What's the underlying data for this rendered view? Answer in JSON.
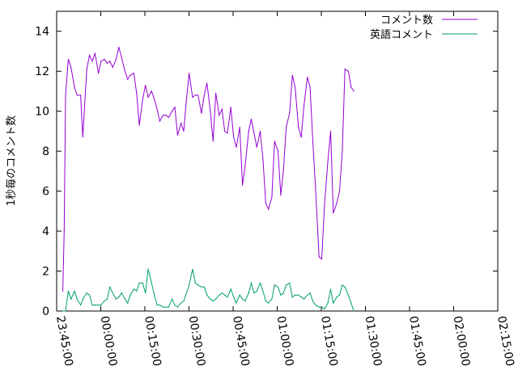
{
  "chart_data": {
    "type": "line",
    "title": "",
    "xlabel": "",
    "ylabel": "1秒毎のコメント数",
    "xlim": [
      "23:45:00",
      "02:15:00"
    ],
    "ylim": [
      0,
      15
    ],
    "xticks": [
      "23:45:00",
      "00:00:00",
      "00:15:00",
      "00:30:00",
      "00:45:00",
      "01:00:00",
      "01:15:00",
      "01:30:00",
      "01:45:00",
      "02:00:00",
      "02:15:00"
    ],
    "yticks": [
      "0",
      "2",
      "4",
      "6",
      "8",
      "10",
      "12",
      "14"
    ],
    "grid": false,
    "legend_position": "top-right",
    "series": [
      {
        "name": "コメント数",
        "color": "#9400d3",
        "points": [
          [
            "23:47:05",
            1.0
          ],
          [
            "23:47:33",
            4.0
          ],
          [
            "23:48:02",
            10.8
          ],
          [
            "23:48:58",
            12.6
          ],
          [
            "23:49:53",
            12.2
          ],
          [
            "23:51:03",
            11.2
          ],
          [
            "23:51:58",
            10.8
          ],
          [
            "23:53:08",
            10.8
          ],
          [
            "23:53:53",
            8.7
          ],
          [
            "23:55:15",
            12.1
          ],
          [
            "23:56:11",
            12.8
          ],
          [
            "23:57:06",
            12.5
          ],
          [
            "23:58:02",
            12.9
          ],
          [
            "23:59:12",
            11.9
          ],
          [
            "00:00:05",
            12.5
          ],
          [
            "00:01:15",
            12.6
          ],
          [
            "00:02:11",
            12.4
          ],
          [
            "00:03:07",
            12.5
          ],
          [
            "00:04:03",
            12.2
          ],
          [
            "00:05:12",
            12.6
          ],
          [
            "00:06:08",
            13.2
          ],
          [
            "00:07:04",
            12.7
          ],
          [
            "00:08:14",
            12.0
          ],
          [
            "00:09:09",
            11.6
          ],
          [
            "00:10:05",
            11.8
          ],
          [
            "00:11:15",
            11.9
          ],
          [
            "00:12:11",
            10.9
          ],
          [
            "00:13:06",
            9.3
          ],
          [
            "00:14:16",
            10.6
          ],
          [
            "00:15:12",
            11.3
          ],
          [
            "00:16:07",
            10.7
          ],
          [
            "00:17:17",
            11.0
          ],
          [
            "00:18:13",
            10.6
          ],
          [
            "00:19:09",
            10.1
          ],
          [
            "00:20:04",
            9.5
          ],
          [
            "00:21:14",
            9.8
          ],
          [
            "00:22:10",
            9.8
          ],
          [
            "00:23:06",
            9.7
          ],
          [
            "00:24:15",
            10.0
          ],
          [
            "00:25:11",
            10.2
          ],
          [
            "00:26:07",
            8.8
          ],
          [
            "00:27:16",
            9.4
          ],
          [
            "00:28:12",
            9.0
          ],
          [
            "00:29:08",
            10.6
          ],
          [
            "00:30:04",
            11.9
          ],
          [
            "00:31:13",
            10.7
          ],
          [
            "00:32:09",
            10.8
          ],
          [
            "00:33:05",
            10.8
          ],
          [
            "00:34:15",
            9.9
          ],
          [
            "00:35:10",
            10.8
          ],
          [
            "00:36:06",
            11.4
          ],
          [
            "00:37:16",
            10.0
          ],
          [
            "00:38:12",
            8.5
          ],
          [
            "00:39:07",
            10.9
          ],
          [
            "00:40:17",
            9.8
          ],
          [
            "00:41:13",
            10.1
          ],
          [
            "00:42:09",
            9.0
          ],
          [
            "00:43:04",
            8.9
          ],
          [
            "00:44:14",
            10.2
          ],
          [
            "00:45:10",
            8.7
          ],
          [
            "00:46:06",
            8.2
          ],
          [
            "00:47:15",
            9.2
          ],
          [
            "00:48:11",
            6.3
          ],
          [
            "00:49:07",
            7.3
          ],
          [
            "00:50:17",
            9.0
          ],
          [
            "00:51:12",
            9.6
          ],
          [
            "00:52:08",
            8.9
          ],
          [
            "00:53:04",
            8.2
          ],
          [
            "00:54:14",
            9.0
          ],
          [
            "00:55:09",
            7.6
          ],
          [
            "00:56:05",
            5.4
          ],
          [
            "00:57:01",
            5.1
          ],
          [
            "00:58:11",
            5.7
          ],
          [
            "00:59:06",
            8.5
          ],
          [
            "01:00:16",
            8.0
          ],
          [
            "01:01:12",
            5.8
          ],
          [
            "01:02:08",
            7.1
          ],
          [
            "01:03:03",
            9.2
          ],
          [
            "01:04:13",
            9.9
          ],
          [
            "01:05:09",
            11.8
          ],
          [
            "01:06:05",
            11.2
          ],
          [
            "01:07:14",
            9.2
          ],
          [
            "01:08:10",
            8.7
          ],
          [
            "01:09:06",
            10.3
          ],
          [
            "01:10:16",
            11.7
          ],
          [
            "01:11:11",
            11.2
          ],
          [
            "01:12:07",
            8.5
          ],
          [
            "01:13:03",
            6.1
          ],
          [
            "01:14:13",
            2.7
          ],
          [
            "01:15:08",
            2.6
          ],
          [
            "01:16:04",
            5.3
          ],
          [
            "01:17:14",
            7.5
          ],
          [
            "01:18:10",
            9.0
          ],
          [
            "01:19:05",
            4.9
          ],
          [
            "01:20:15",
            5.4
          ],
          [
            "01:21:11",
            6.0
          ],
          [
            "01:22:07",
            8.0
          ],
          [
            "01:23:02",
            12.1
          ],
          [
            "01:24:12",
            12.0
          ],
          [
            "01:25:08",
            11.2
          ],
          [
            "01:26:04",
            11.0
          ]
        ]
      },
      {
        "name": "英語コメント",
        "color": "#009e73",
        "points": [
          [
            "23:47:05",
            0.0
          ],
          [
            "23:48:02",
            0.0
          ],
          [
            "23:48:58",
            1.0
          ],
          [
            "23:49:53",
            0.6
          ],
          [
            "23:51:03",
            1.0
          ],
          [
            "23:51:58",
            0.6
          ],
          [
            "23:53:08",
            0.3
          ],
          [
            "23:53:53",
            0.6
          ],
          [
            "23:55:15",
            0.9
          ],
          [
            "23:56:11",
            0.8
          ],
          [
            "23:57:06",
            0.3
          ],
          [
            "23:58:02",
            0.3
          ],
          [
            "23:59:12",
            0.3
          ],
          [
            "00:00:05",
            0.3
          ],
          [
            "00:01:15",
            0.5
          ],
          [
            "00:02:11",
            0.6
          ],
          [
            "00:03:07",
            1.2
          ],
          [
            "00:04:03",
            0.9
          ],
          [
            "00:05:12",
            0.6
          ],
          [
            "00:06:08",
            0.7
          ],
          [
            "00:07:04",
            0.9
          ],
          [
            "00:08:14",
            0.6
          ],
          [
            "00:09:09",
            0.4
          ],
          [
            "00:10:05",
            0.8
          ],
          [
            "00:11:15",
            1.1
          ],
          [
            "00:12:11",
            1.0
          ],
          [
            "00:13:06",
            1.4
          ],
          [
            "00:14:16",
            1.4
          ],
          [
            "00:15:12",
            0.9
          ],
          [
            "00:16:07",
            2.1
          ],
          [
            "00:17:17",
            1.4
          ],
          [
            "00:18:13",
            0.8
          ],
          [
            "00:19:09",
            0.3
          ],
          [
            "00:20:04",
            0.3
          ],
          [
            "00:21:14",
            0.2
          ],
          [
            "00:22:10",
            0.2
          ],
          [
            "00:23:06",
            0.2
          ],
          [
            "00:24:15",
            0.6
          ],
          [
            "00:25:11",
            0.3
          ],
          [
            "00:26:07",
            0.2
          ],
          [
            "00:27:16",
            0.4
          ],
          [
            "00:28:12",
            0.5
          ],
          [
            "00:29:08",
            0.9
          ],
          [
            "00:30:04",
            1.3
          ],
          [
            "00:31:13",
            2.1
          ],
          [
            "00:32:09",
            1.4
          ],
          [
            "00:33:05",
            1.3
          ],
          [
            "00:34:15",
            1.2
          ],
          [
            "00:35:10",
            1.2
          ],
          [
            "00:36:06",
            0.8
          ],
          [
            "00:37:16",
            0.6
          ],
          [
            "00:38:12",
            0.5
          ],
          [
            "00:39:07",
            0.6
          ],
          [
            "00:40:17",
            0.8
          ],
          [
            "00:41:13",
            0.9
          ],
          [
            "00:42:09",
            0.8
          ],
          [
            "00:43:04",
            0.7
          ],
          [
            "00:44:14",
            1.1
          ],
          [
            "00:45:10",
            0.7
          ],
          [
            "00:46:06",
            0.4
          ],
          [
            "00:47:15",
            0.8
          ],
          [
            "00:48:11",
            0.6
          ],
          [
            "00:49:07",
            0.5
          ],
          [
            "00:50:17",
            0.9
          ],
          [
            "00:51:12",
            1.4
          ],
          [
            "00:52:08",
            0.9
          ],
          [
            "00:53:04",
            1.0
          ],
          [
            "00:54:14",
            1.4
          ],
          [
            "00:55:09",
            1.0
          ],
          [
            "00:56:05",
            0.5
          ],
          [
            "00:57:01",
            0.4
          ],
          [
            "00:58:11",
            0.6
          ],
          [
            "00:59:06",
            1.3
          ],
          [
            "01:00:16",
            1.2
          ],
          [
            "01:01:12",
            0.8
          ],
          [
            "01:02:08",
            0.9
          ],
          [
            "01:03:03",
            1.3
          ],
          [
            "01:04:13",
            1.4
          ],
          [
            "01:05:09",
            0.7
          ],
          [
            "01:06:05",
            0.8
          ],
          [
            "01:07:14",
            0.8
          ],
          [
            "01:08:10",
            0.7
          ],
          [
            "01:09:06",
            0.6
          ],
          [
            "01:10:16",
            0.8
          ],
          [
            "01:11:11",
            0.9
          ],
          [
            "01:12:07",
            0.5
          ],
          [
            "01:13:03",
            0.3
          ],
          [
            "01:14:13",
            0.2
          ],
          [
            "01:15:08",
            0.2
          ],
          [
            "01:16:04",
            0.1
          ],
          [
            "01:17:14",
            0.4
          ],
          [
            "01:18:10",
            1.1
          ],
          [
            "01:19:05",
            0.4
          ],
          [
            "01:20:15",
            0.7
          ],
          [
            "01:21:11",
            0.8
          ],
          [
            "01:22:07",
            1.3
          ],
          [
            "01:23:02",
            1.2
          ],
          [
            "01:24:12",
            0.8
          ],
          [
            "01:25:08",
            0.4
          ],
          [
            "01:26:04",
            0.0
          ]
        ]
      }
    ]
  }
}
